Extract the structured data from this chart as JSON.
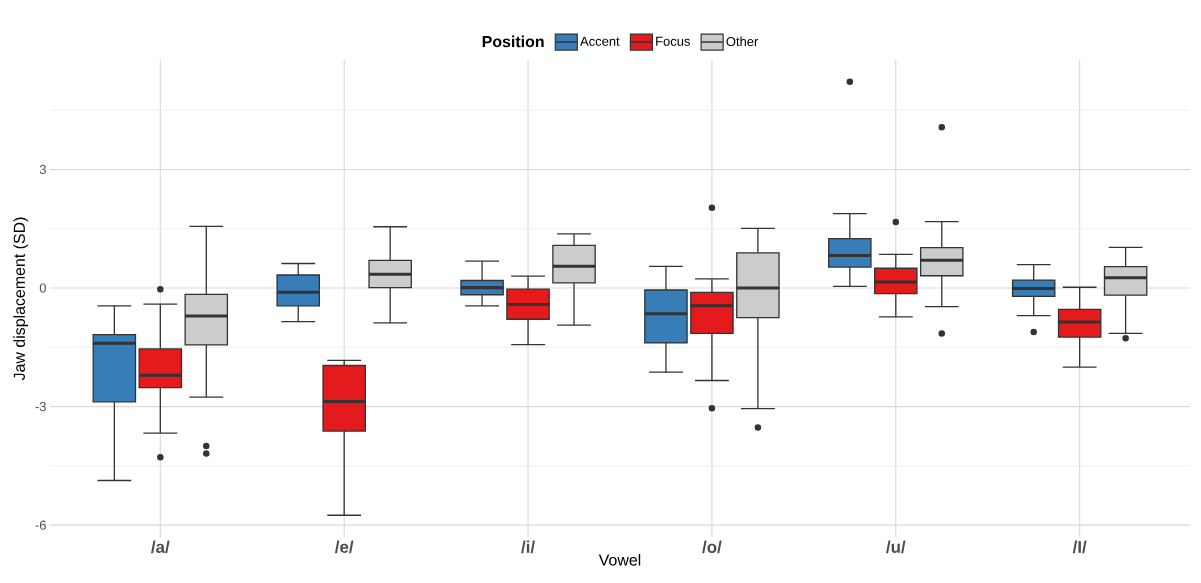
{
  "chart_data": {
    "type": "box",
    "xlabel": "Vowel",
    "ylabel": "Jaw displacement (SD)",
    "legend_title": "Position",
    "categories": [
      "/a/",
      "/e/",
      "/i/",
      "/o/",
      "/u/",
      "/I/"
    ],
    "ylim": [
      -6.3,
      5.77
    ],
    "yticks": [
      -6,
      -3,
      0,
      3
    ],
    "grid": true,
    "legend": "top",
    "series": [
      {
        "name": "Accent",
        "color": "#377eb8",
        "boxes": [
          {
            "low": -4.87,
            "q1": -2.88,
            "median": -1.4,
            "q3": -1.18,
            "high": -0.45
          },
          {
            "low": -0.85,
            "q1": -0.45,
            "median": -0.11,
            "q3": 0.33,
            "high": 0.62
          },
          {
            "low": -0.45,
            "q1": -0.17,
            "median": 0.01,
            "q3": 0.19,
            "high": 0.68
          },
          {
            "low": -2.13,
            "q1": -1.39,
            "median": -0.65,
            "q3": -0.05,
            "high": 0.55
          },
          {
            "low": 0.04,
            "q1": 0.53,
            "median": 0.82,
            "q3": 1.25,
            "high": 1.88,
            "outliers": [
              5.22
            ]
          },
          {
            "low": -0.7,
            "q1": -0.21,
            "median": -0.01,
            "q3": 0.2,
            "high": 0.59,
            "outliers": [
              -1.11
            ]
          }
        ]
      },
      {
        "name": "Focus",
        "color": "#e41a1c",
        "boxes": [
          {
            "low": -3.67,
            "q1": -2.52,
            "median": -2.21,
            "q3": -1.54,
            "high": -0.41,
            "outliers": [
              -0.03,
              -4.28
            ]
          },
          {
            "low": -5.75,
            "q1": -3.62,
            "median": -2.87,
            "q3": -1.96,
            "high": -1.83
          },
          {
            "low": -1.43,
            "q1": -0.79,
            "median": -0.42,
            "q3": -0.03,
            "high": 0.3
          },
          {
            "low": -2.34,
            "q1": -1.15,
            "median": -0.45,
            "q3": -0.11,
            "high": 0.23,
            "outliers": [
              2.03,
              -3.04
            ]
          },
          {
            "low": -0.73,
            "q1": -0.14,
            "median": 0.15,
            "q3": 0.5,
            "high": 0.85,
            "outliers": [
              1.67
            ]
          },
          {
            "low": -2.0,
            "q1": -1.24,
            "median": -0.86,
            "q3": -0.54,
            "high": 0.02
          }
        ]
      },
      {
        "name": "Other",
        "color": "#cccccc",
        "boxes": [
          {
            "low": -2.76,
            "q1": -1.44,
            "median": -0.71,
            "q3": -0.16,
            "high": 1.56,
            "outliers": [
              -4.0,
              -4.19
            ]
          },
          {
            "low": -0.88,
            "q1": 0.01,
            "median": 0.35,
            "q3": 0.7,
            "high": 1.55
          },
          {
            "low": -0.94,
            "q1": 0.13,
            "median": 0.55,
            "q3": 1.08,
            "high": 1.37
          },
          {
            "low": -3.05,
            "q1": -0.75,
            "median": 0.0,
            "q3": 0.89,
            "high": 1.51,
            "outliers": [
              -3.53
            ]
          },
          {
            "low": -0.47,
            "q1": 0.31,
            "median": 0.7,
            "q3": 1.02,
            "high": 1.68,
            "outliers": [
              4.07,
              -1.15
            ]
          },
          {
            "low": -1.15,
            "q1": -0.18,
            "median": 0.26,
            "q3": 0.54,
            "high": 1.03,
            "outliers": [
              -1.27
            ]
          }
        ]
      }
    ]
  }
}
